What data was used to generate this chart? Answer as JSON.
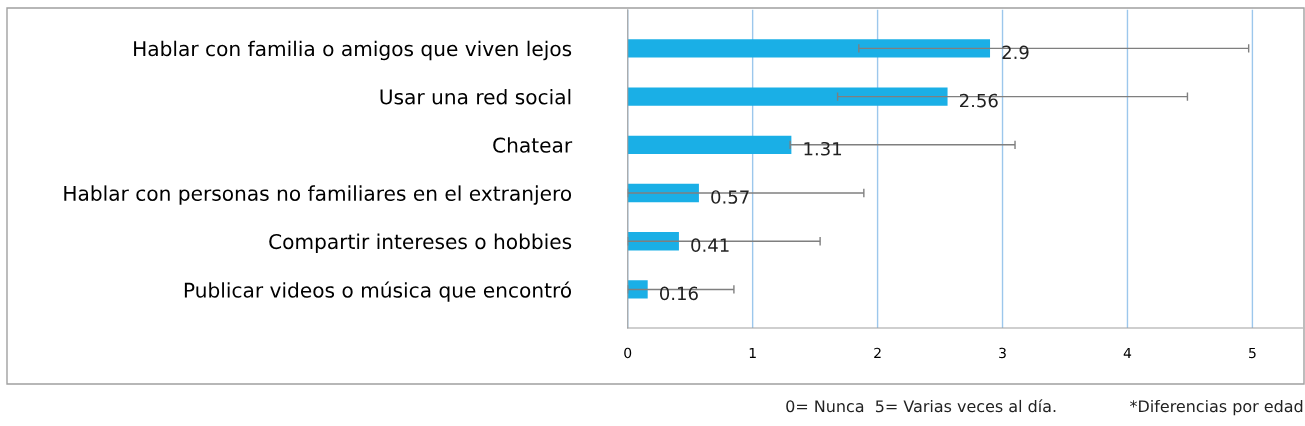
{
  "chart_data": {
    "type": "bar",
    "orientation": "horizontal",
    "categories": [
      "Hablar con familia o amigos que viven lejos",
      "Usar una red social",
      "Chatear",
      "Hablar con personas no familiares en el extranjero",
      "Compartir intereses o hobbies",
      "Publicar videos o música que encontró"
    ],
    "values": [
      2.9,
      2.56,
      1.31,
      0.57,
      0.41,
      0.16
    ],
    "errors": [
      [
        1.85,
        4.97
      ],
      [
        1.68,
        4.48
      ],
      [
        1.3,
        3.1
      ],
      [
        0,
        1.89
      ],
      [
        0,
        1.54
      ],
      [
        0,
        0.85
      ]
    ],
    "color": "#1aafe6",
    "data_labels": true,
    "xlim": [
      0,
      5.4
    ],
    "xticks": [
      0,
      1,
      2,
      3,
      4,
      5
    ],
    "grid": "x",
    "annotations": [
      "0= Nunca  5= Varias veces al día.",
      "*Diferencias por edad"
    ]
  }
}
